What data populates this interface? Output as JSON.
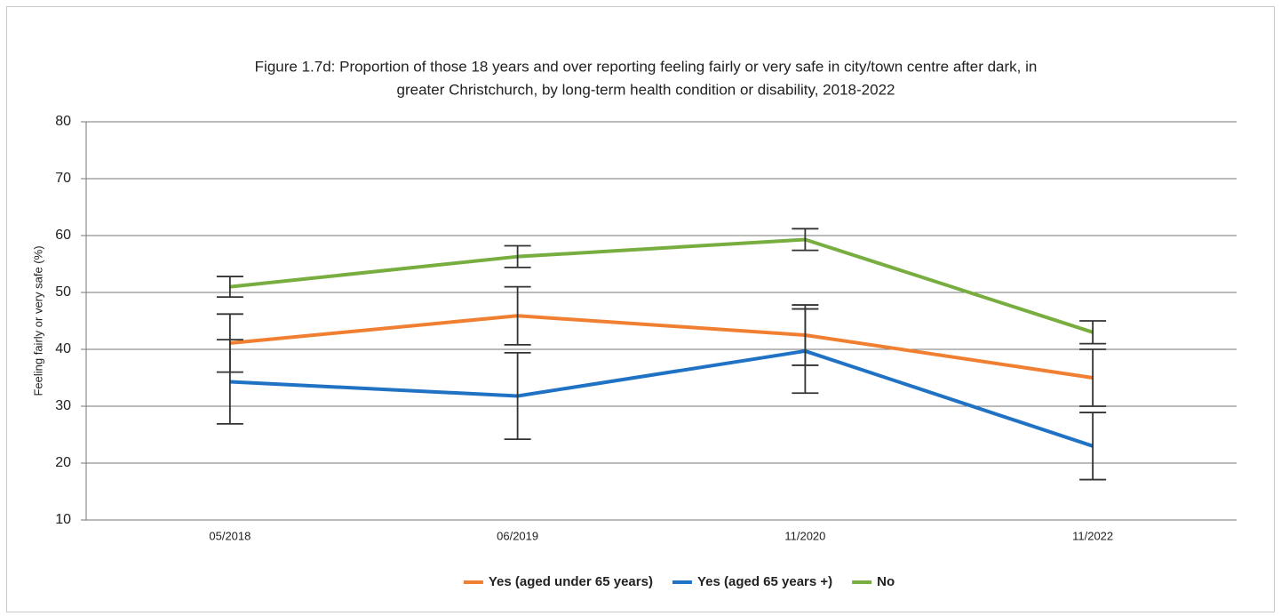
{
  "chart_data": {
    "type": "line",
    "title": [
      "Figure 1.7d: Proportion of those 18 years and over reporting feeling fairly or very safe in city/town centre after dark, in",
      "greater Christchurch, by long-term health condition or disability, 2018-2022"
    ],
    "ylabel": "Feeling fairly or very safe (%)",
    "categories": [
      "05/2018",
      "06/2019",
      "11/2020",
      "11/2022"
    ],
    "series": [
      {
        "name": "Yes (aged under 65 years)",
        "color": "#f07f32",
        "values": [
          41.1,
          45.9,
          42.5,
          35.0
        ],
        "errors": [
          5.1,
          5.1,
          5.3,
          5.0
        ]
      },
      {
        "name": "Yes (aged 65 years +)",
        "color": "#1f72c4",
        "values": [
          34.3,
          31.8,
          39.7,
          23.0
        ],
        "errors": [
          7.4,
          7.6,
          7.4,
          5.9
        ]
      },
      {
        "name": "No",
        "color": "#78ad3f",
        "values": [
          51.0,
          56.3,
          59.3,
          43.0
        ],
        "errors": [
          1.8,
          1.9,
          1.9,
          2.0
        ]
      }
    ],
    "error_color": "#333333",
    "ylim": [
      10,
      80
    ],
    "yticks": [
      10,
      20,
      30,
      40,
      50,
      60,
      70,
      80
    ],
    "grid": true,
    "legend": "bottom"
  }
}
